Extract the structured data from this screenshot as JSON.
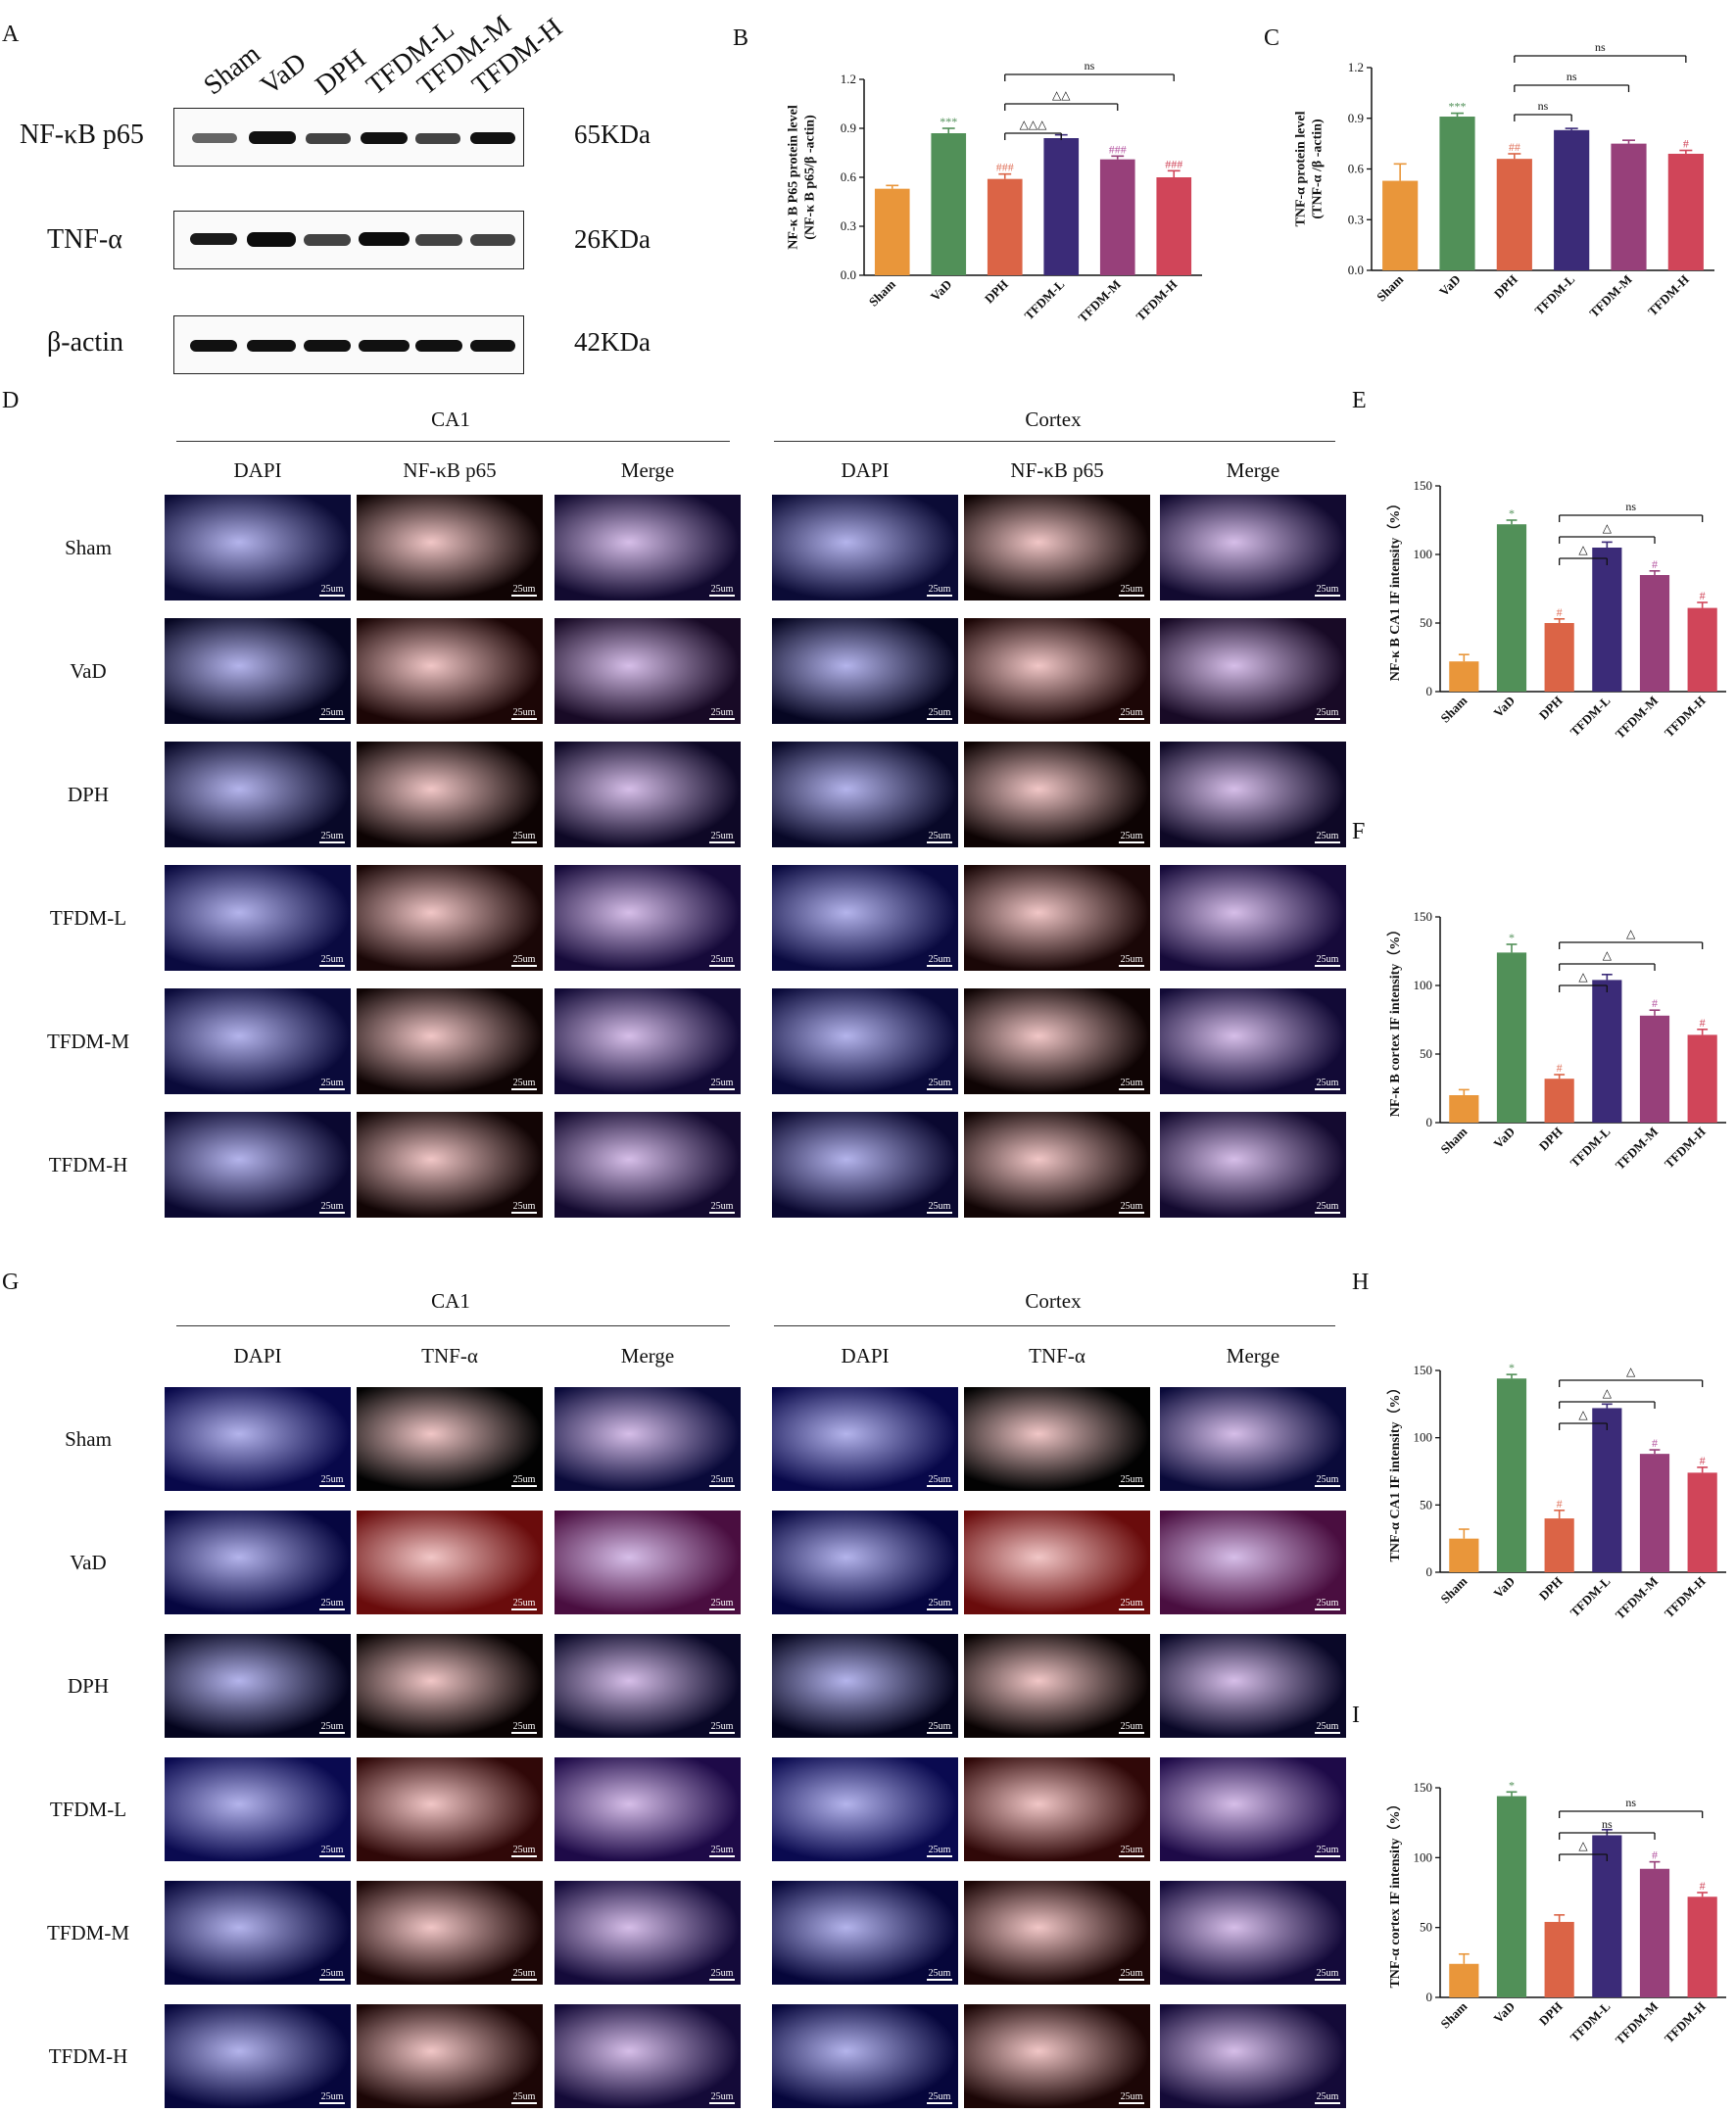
{
  "panel_letters": {
    "A": "A",
    "B": "B",
    "C": "C",
    "D": "D",
    "E": "E",
    "F": "F",
    "G": "G",
    "H": "H",
    "I": "I"
  },
  "western_blot": {
    "lanes": [
      "Sham",
      "VaD",
      "DPH",
      "TFDM-L",
      "TFDM-M",
      "TFDM-H"
    ],
    "bands": [
      {
        "protein": "NF-κB p65",
        "kda": "65KDa"
      },
      {
        "protein": "TNF-α",
        "kda": "26KDa"
      },
      {
        "protein": "β-actin",
        "kda": "42KDa"
      }
    ]
  },
  "if_panels": {
    "D": {
      "regions": [
        "CA1",
        "Cortex"
      ],
      "columns": [
        "DAPI",
        "NF-κB p65",
        "Merge"
      ],
      "groups": [
        "Sham",
        "VaD",
        "DPH",
        "TFDM-L",
        "TFDM-M",
        "TFDM-H"
      ],
      "scale_label": "25um"
    },
    "G": {
      "regions": [
        "CA1",
        "Cortex"
      ],
      "columns": [
        "DAPI",
        "TNF-α",
        "Merge"
      ],
      "groups": [
        "Sham",
        "VaD",
        "DPH",
        "TFDM-L",
        "TFDM-M",
        "TFDM-H"
      ],
      "scale_label": "25um"
    }
  },
  "colors": {
    "Sham": "#e9963a",
    "VaD": "#519058",
    "DPH": "#db6446",
    "TFDM-L": "#3b2b78",
    "TFDM-M": "#97407a",
    "TFDM-H": "#d04559"
  },
  "chart_data": [
    {
      "panel": "B",
      "type": "bar",
      "categories": [
        "Sham",
        "VaD",
        "DPH",
        "TFDM-L",
        "TFDM-M",
        "TFDM-H"
      ],
      "values": [
        0.53,
        0.87,
        0.59,
        0.84,
        0.71,
        0.6
      ],
      "errors": [
        0.02,
        0.03,
        0.03,
        0.02,
        0.02,
        0.04
      ],
      "ylabel": [
        "NF-κ B P65 protein level",
        "(NF-κ B p65/β -actin)"
      ],
      "ylim": [
        0,
        1.2
      ],
      "yticks": [
        "0.0",
        "0.3",
        "0.6",
        "0.9",
        "1.2"
      ],
      "marks": [
        "",
        "***",
        "###",
        "",
        "###",
        "###"
      ],
      "comparisons": [
        {
          "from": "DPH",
          "to": "TFDM-L",
          "label": "△△△"
        },
        {
          "from": "DPH",
          "to": "TFDM-M",
          "label": "△△"
        },
        {
          "from": "DPH",
          "to": "TFDM-H",
          "label": "ns"
        }
      ]
    },
    {
      "panel": "C",
      "type": "bar",
      "categories": [
        "Sham",
        "VaD",
        "DPH",
        "TFDM-L",
        "TFDM-M",
        "TFDM-H"
      ],
      "values": [
        0.53,
        0.91,
        0.66,
        0.83,
        0.75,
        0.69
      ],
      "errors": [
        0.1,
        0.02,
        0.03,
        0.01,
        0.02,
        0.02
      ],
      "ylabel": [
        "TNF-α  protein level",
        "(TNF-α /β -actin)"
      ],
      "ylim": [
        0,
        1.2
      ],
      "yticks": [
        "0.0",
        "0.3",
        "0.6",
        "0.9",
        "1.2"
      ],
      "marks": [
        "",
        "***",
        "##",
        "",
        "",
        "#"
      ],
      "comparisons": [
        {
          "from": "DPH",
          "to": "TFDM-L",
          "label": "ns"
        },
        {
          "from": "DPH",
          "to": "TFDM-M",
          "label": "ns"
        },
        {
          "from": "DPH",
          "to": "TFDM-H",
          "label": "ns"
        }
      ]
    },
    {
      "panel": "E",
      "type": "bar",
      "categories": [
        "Sham",
        "VaD",
        "DPH",
        "TFDM-L",
        "TFDM-M",
        "TFDM-H"
      ],
      "values": [
        22,
        122,
        50,
        105,
        85,
        61
      ],
      "errors": [
        5,
        3,
        3,
        4,
        3,
        4
      ],
      "ylabel": [
        "NF-κ B CA1 IF intensity（%）"
      ],
      "ylim": [
        0,
        150
      ],
      "yticks": [
        "0",
        "50",
        "100",
        "150"
      ],
      "marks": [
        "",
        "*",
        "#",
        "",
        "#",
        "#"
      ],
      "comparisons": [
        {
          "from": "DPH",
          "to": "TFDM-L",
          "label": "△"
        },
        {
          "from": "DPH",
          "to": "TFDM-M",
          "label": "△"
        },
        {
          "from": "DPH",
          "to": "TFDM-H",
          "label": "ns"
        }
      ]
    },
    {
      "panel": "F",
      "type": "bar",
      "categories": [
        "Sham",
        "VaD",
        "DPH",
        "TFDM-L",
        "TFDM-M",
        "TFDM-H"
      ],
      "values": [
        20,
        124,
        32,
        104,
        78,
        64
      ],
      "errors": [
        4,
        6,
        3,
        4,
        4,
        4
      ],
      "ylabel": [
        "NF-κ B  cortex IF intensity（%）"
      ],
      "ylim": [
        0,
        150
      ],
      "yticks": [
        "0",
        "50",
        "100",
        "150"
      ],
      "marks": [
        "",
        "*",
        "#",
        "",
        "#",
        "#"
      ],
      "comparisons": [
        {
          "from": "DPH",
          "to": "TFDM-L",
          "label": "△"
        },
        {
          "from": "DPH",
          "to": "TFDM-M",
          "label": "△"
        },
        {
          "from": "DPH",
          "to": "TFDM-H",
          "label": "△"
        }
      ]
    },
    {
      "panel": "H",
      "type": "bar",
      "categories": [
        "Sham",
        "VaD",
        "DPH",
        "TFDM-L",
        "TFDM-M",
        "TFDM-H"
      ],
      "values": [
        25,
        144,
        40,
        122,
        88,
        74
      ],
      "errors": [
        7,
        3,
        6,
        3,
        3,
        4
      ],
      "ylabel": [
        "TNF-α  CA1 IF intensity（%）"
      ],
      "ylim": [
        0,
        150
      ],
      "yticks": [
        "0",
        "50",
        "100",
        "150"
      ],
      "marks": [
        "",
        "*",
        "#",
        "",
        "#",
        "#"
      ],
      "comparisons": [
        {
          "from": "DPH",
          "to": "TFDM-L",
          "label": "△"
        },
        {
          "from": "DPH",
          "to": "TFDM-M",
          "label": "△"
        },
        {
          "from": "DPH",
          "to": "TFDM-H",
          "label": "△"
        }
      ]
    },
    {
      "panel": "I",
      "type": "bar",
      "categories": [
        "Sham",
        "VaD",
        "DPH",
        "TFDM-L",
        "TFDM-M",
        "TFDM-H"
      ],
      "values": [
        24,
        144,
        54,
        116,
        92,
        72
      ],
      "errors": [
        7,
        3,
        5,
        4,
        5,
        3
      ],
      "ylabel": [
        "TNF-α  cortex IF intensity（%）"
      ],
      "ylim": [
        0,
        150
      ],
      "yticks": [
        "0",
        "50",
        "100",
        "150"
      ],
      "marks": [
        "",
        "*",
        "",
        "",
        "#",
        "#"
      ],
      "comparisons": [
        {
          "from": "DPH",
          "to": "TFDM-L",
          "label": "△"
        },
        {
          "from": "DPH",
          "to": "TFDM-M",
          "label": "ns"
        },
        {
          "from": "DPH",
          "to": "TFDM-H",
          "label": "ns"
        }
      ]
    }
  ]
}
